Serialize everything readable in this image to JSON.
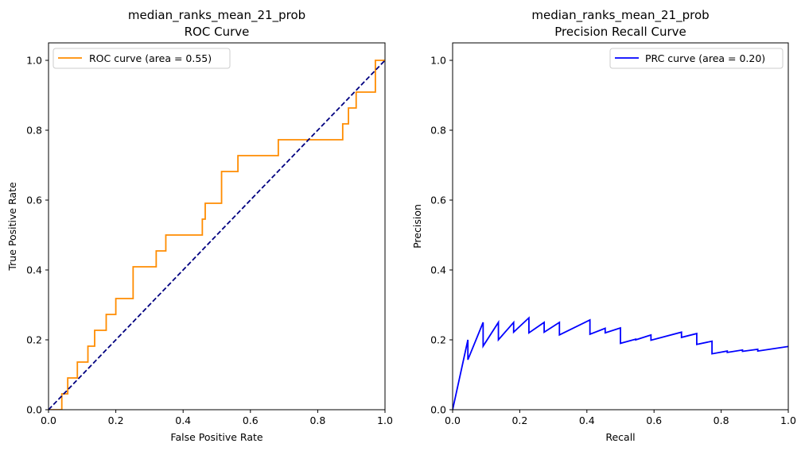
{
  "chart_data": [
    {
      "type": "line",
      "title": "median_ranks_mean_21_prob",
      "subtitle": "ROC Curve",
      "xlabel": "False Positive Rate",
      "ylabel": "True Positive Rate",
      "xlim": [
        0.0,
        1.0
      ],
      "ylim": [
        0.0,
        1.05
      ],
      "xticks": [
        "0.0",
        "0.2",
        "0.4",
        "0.6",
        "0.8",
        "1.0"
      ],
      "yticks": [
        "0.0",
        "0.2",
        "0.4",
        "0.6",
        "0.8",
        "1.0"
      ],
      "legend_position": "upper-left",
      "grid": false,
      "series": [
        {
          "name": "ROC curve (area = 0.55)",
          "color": "#ff8c00",
          "style": "solid",
          "x": [
            0.0,
            0.0395,
            0.0395,
            0.0571,
            0.0571,
            0.0857,
            0.0857,
            0.1171,
            0.1171,
            0.1371,
            0.1371,
            0.1714,
            0.1714,
            0.2,
            0.2,
            0.2514,
            0.2514,
            0.32,
            0.32,
            0.3486,
            0.3486,
            0.4571,
            0.4571,
            0.4657,
            0.4657,
            0.5143,
            0.5143,
            0.5629,
            0.5629,
            0.6829,
            0.6829,
            0.8743,
            0.8743,
            0.8914,
            0.8914,
            0.9143,
            0.9143,
            0.9714,
            0.9714,
            1.0
          ],
          "y": [
            0.0,
            0.0,
            0.0455,
            0.0455,
            0.0909,
            0.0909,
            0.1364,
            0.1364,
            0.1818,
            0.1818,
            0.2273,
            0.2273,
            0.2727,
            0.2727,
            0.3182,
            0.3182,
            0.4091,
            0.4091,
            0.4545,
            0.4545,
            0.5,
            0.5,
            0.5455,
            0.5455,
            0.5909,
            0.5909,
            0.6818,
            0.6818,
            0.7273,
            0.7273,
            0.7727,
            0.7727,
            0.8182,
            0.8182,
            0.8636,
            0.8636,
            0.9091,
            0.9091,
            1.0,
            1.0
          ]
        },
        {
          "name": "",
          "color": "#000080",
          "style": "dashed",
          "x": [
            0.0,
            1.0
          ],
          "y": [
            0.0,
            1.0
          ]
        }
      ]
    },
    {
      "type": "line",
      "title": "median_ranks_mean_21_prob",
      "subtitle": "Precision Recall Curve",
      "xlabel": "Recall",
      "ylabel": "Precision",
      "xlim": [
        0.0,
        1.0
      ],
      "ylim": [
        0.0,
        1.05
      ],
      "xticks": [
        "0.0",
        "0.2",
        "0.4",
        "0.6",
        "0.8",
        "1.0"
      ],
      "yticks": [
        "0.0",
        "0.2",
        "0.4",
        "0.6",
        "0.8",
        "1.0"
      ],
      "legend_position": "upper-right",
      "grid": false,
      "series": [
        {
          "name": "PRC curve (area = 0.20)",
          "color": "#0000ff",
          "style": "solid",
          "x": [
            0.0,
            0.0455,
            0.0455,
            0.0909,
            0.0909,
            0.1364,
            0.1364,
            0.1818,
            0.1818,
            0.2273,
            0.2273,
            0.2727,
            0.2727,
            0.3182,
            0.3182,
            0.4091,
            0.4091,
            0.4545,
            0.4545,
            0.5,
            0.5,
            0.5455,
            0.5455,
            0.5909,
            0.5909,
            0.6818,
            0.6818,
            0.7273,
            0.7273,
            0.7727,
            0.7727,
            0.8182,
            0.8182,
            0.8636,
            0.8636,
            0.9091,
            0.9091,
            1.0
          ],
          "y": [
            0.0,
            0.2,
            0.143,
            0.25,
            0.182,
            0.25,
            0.2,
            0.25,
            0.222,
            0.263,
            0.22,
            0.25,
            0.222,
            0.25,
            0.214,
            0.257,
            0.216,
            0.233,
            0.22,
            0.234,
            0.19,
            0.202,
            0.2,
            0.214,
            0.199,
            0.222,
            0.207,
            0.218,
            0.187,
            0.196,
            0.16,
            0.168,
            0.164,
            0.171,
            0.167,
            0.173,
            0.168,
            0.181
          ]
        }
      ]
    }
  ]
}
